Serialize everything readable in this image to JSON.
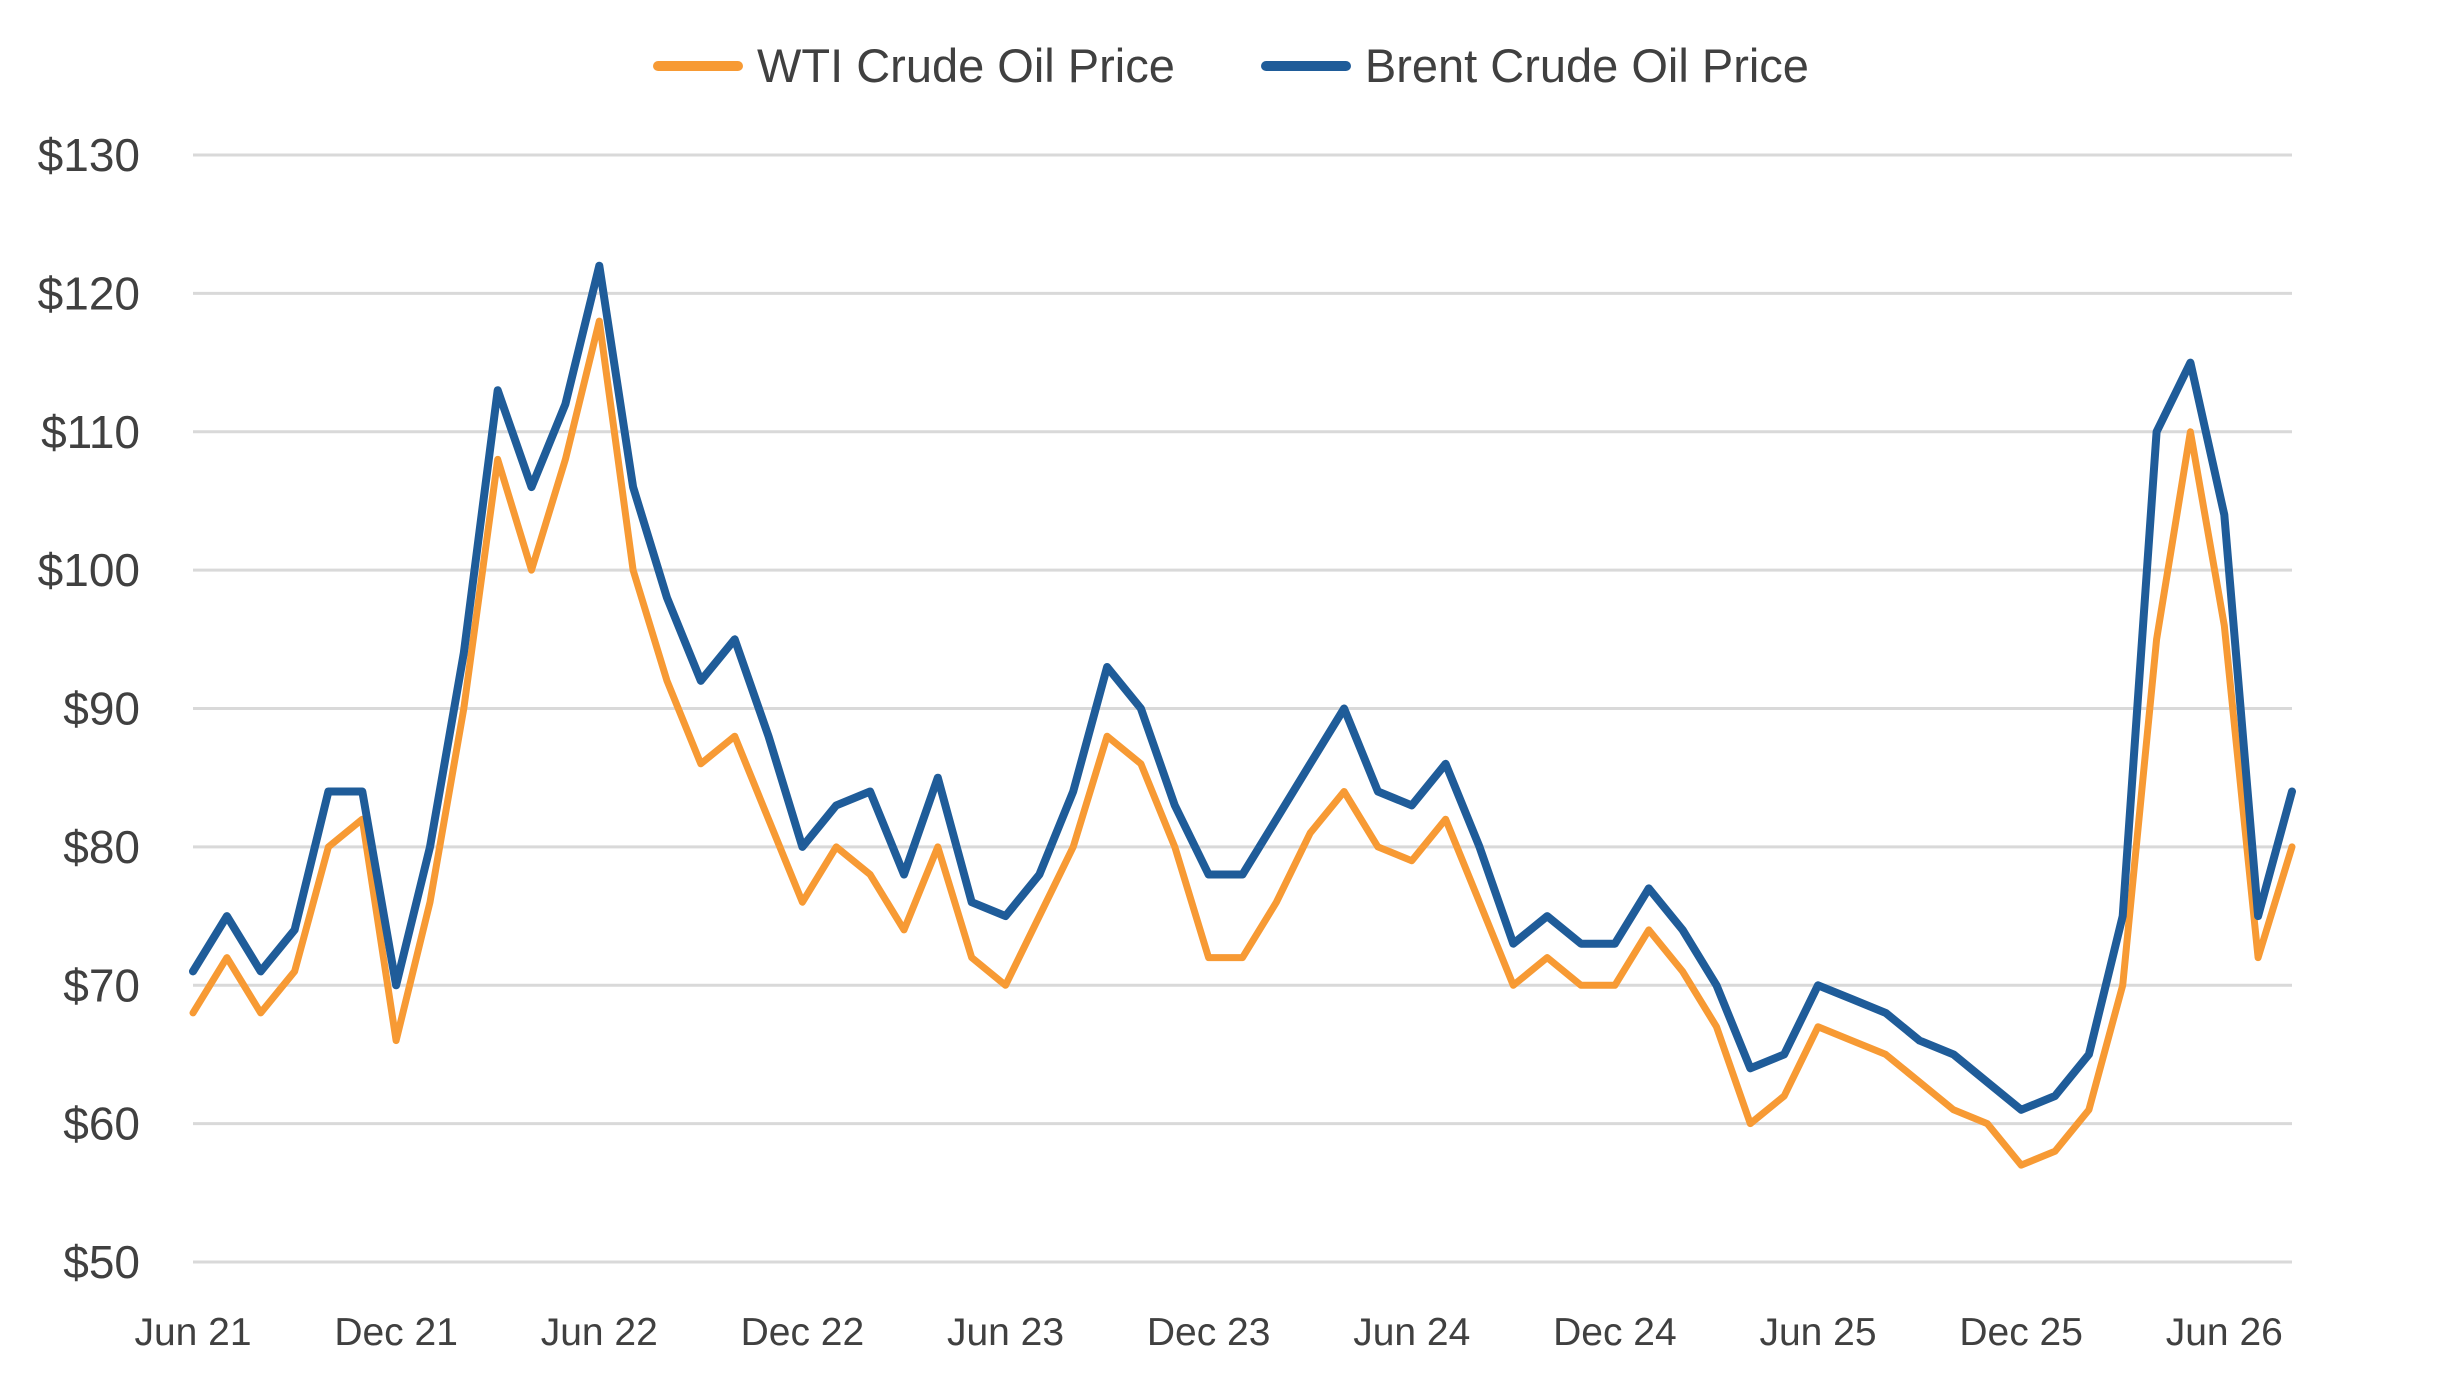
{
  "chart_data": {
    "type": "line",
    "title": "",
    "xlabel": "",
    "ylabel": "",
    "ylim": [
      50,
      130
    ],
    "yticks": [
      "$50",
      "$60",
      "$70",
      "$80",
      "$90",
      "$100",
      "$110",
      "$120",
      "$130"
    ],
    "ytick_values": [
      50,
      60,
      70,
      80,
      90,
      100,
      110,
      120,
      130
    ],
    "xticks": [
      "Jun 21",
      "Dec 21",
      "Jun 22",
      "Dec 22",
      "Jun 23",
      "Dec 23",
      "Jun 24",
      "Dec 24",
      "Jun 25",
      "Dec 25",
      "Jun 26"
    ],
    "xtick_values": [
      "2021-06",
      "2021-12",
      "2022-06",
      "2022-12",
      "2023-06",
      "2023-12",
      "2024-06",
      "2024-12",
      "2025-06",
      "2025-12",
      "2026-06"
    ],
    "x_range": [
      "2021-06",
      "2026-08"
    ],
    "grid": "horizontal",
    "legend_position": "top-center",
    "series": [
      {
        "name": "WTI Crude Oil Price",
        "color": "#F79A34",
        "x": [
          "2021-06",
          "2021-07",
          "2021-08",
          "2021-09",
          "2021-10",
          "2021-11",
          "2021-12",
          "2022-01",
          "2022-02",
          "2022-03",
          "2022-04",
          "2022-05",
          "2022-06",
          "2022-07",
          "2022-08",
          "2022-09",
          "2022-10",
          "2022-11",
          "2022-12",
          "2023-01",
          "2023-02",
          "2023-03",
          "2023-04",
          "2023-05",
          "2023-06",
          "2023-07",
          "2023-08",
          "2023-09",
          "2023-10",
          "2023-11",
          "2023-12",
          "2024-01",
          "2024-02",
          "2024-03",
          "2024-04",
          "2024-05",
          "2024-06",
          "2024-07",
          "2024-08",
          "2024-09",
          "2024-10",
          "2024-11",
          "2024-12",
          "2025-01",
          "2025-02",
          "2025-03",
          "2025-04",
          "2025-05",
          "2025-06",
          "2025-07",
          "2025-08",
          "2025-09",
          "2025-10",
          "2025-11",
          "2025-12",
          "2026-01",
          "2026-02",
          "2026-03",
          "2026-04",
          "2026-05",
          "2026-06",
          "2026-07",
          "2026-08"
        ],
        "values": [
          68,
          72,
          68,
          71,
          80,
          82,
          66,
          76,
          90,
          108,
          100,
          108,
          118,
          100,
          92,
          86,
          88,
          82,
          76,
          80,
          78,
          74,
          80,
          72,
          70,
          75,
          80,
          88,
          86,
          80,
          72,
          72,
          76,
          81,
          84,
          80,
          79,
          82,
          76,
          70,
          72,
          70,
          70,
          74,
          71,
          67,
          60,
          62,
          67,
          66,
          65,
          63,
          61,
          60,
          57,
          58,
          61,
          70,
          95,
          110,
          96,
          72,
          80
        ]
      },
      {
        "name": "Brent Crude Oil Price",
        "color": "#1F5C99",
        "x": [
          "2021-06",
          "2021-07",
          "2021-08",
          "2021-09",
          "2021-10",
          "2021-11",
          "2021-12",
          "2022-01",
          "2022-02",
          "2022-03",
          "2022-04",
          "2022-05",
          "2022-06",
          "2022-07",
          "2022-08",
          "2022-09",
          "2022-10",
          "2022-11",
          "2022-12",
          "2023-01",
          "2023-02",
          "2023-03",
          "2023-04",
          "2023-05",
          "2023-06",
          "2023-07",
          "2023-08",
          "2023-09",
          "2023-10",
          "2023-11",
          "2023-12",
          "2024-01",
          "2024-02",
          "2024-03",
          "2024-04",
          "2024-05",
          "2024-06",
          "2024-07",
          "2024-08",
          "2024-09",
          "2024-10",
          "2024-11",
          "2024-12",
          "2025-01",
          "2025-02",
          "2025-03",
          "2025-04",
          "2025-05",
          "2025-06",
          "2025-07",
          "2025-08",
          "2025-09",
          "2025-10",
          "2025-11",
          "2025-12",
          "2026-01",
          "2026-02",
          "2026-03",
          "2026-04",
          "2026-05",
          "2026-06",
          "2026-07",
          "2026-08"
        ],
        "values": [
          71,
          75,
          71,
          74,
          84,
          84,
          70,
          80,
          94,
          113,
          106,
          112,
          122,
          106,
          98,
          92,
          95,
          88,
          80,
          83,
          84,
          78,
          85,
          76,
          75,
          78,
          84,
          93,
          90,
          83,
          78,
          78,
          82,
          86,
          90,
          84,
          83,
          86,
          80,
          73,
          75,
          73,
          73,
          77,
          74,
          70,
          64,
          65,
          70,
          69,
          68,
          66,
          65,
          63,
          61,
          62,
          65,
          75,
          110,
          115,
          104,
          75,
          84
        ]
      }
    ]
  }
}
